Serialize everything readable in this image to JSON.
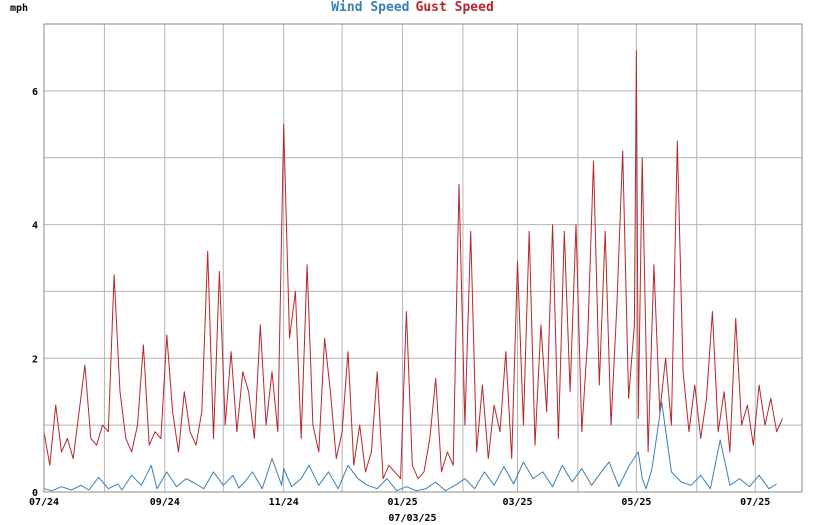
{
  "chart_data": {
    "type": "line",
    "title": "",
    "ylabel": "mph",
    "xlabel": "07/03/25",
    "ylim": [
      0,
      7
    ],
    "yticks": [
      0,
      2,
      4,
      6
    ],
    "xlim": [
      "2024-07-01",
      "2025-07-25"
    ],
    "x_tick_labels": [
      "07/24",
      "09/24",
      "11/24",
      "01/25",
      "03/25",
      "05/25",
      "07/25"
    ],
    "x_tick_dates": [
      "2024-07-01",
      "2024-09-01",
      "2024-11-01",
      "2025-01-01",
      "2025-03-01",
      "2025-05-01",
      "2025-07-01"
    ],
    "grid": true,
    "legend": "top-center",
    "series": [
      {
        "name": "Wind Speed",
        "color": "#3b7fb5",
        "x": [
          "2024-07-01",
          "2024-07-05",
          "2024-07-10",
          "2024-07-15",
          "2024-07-20",
          "2024-07-24",
          "2024-07-29",
          "2024-08-03",
          "2024-08-08",
          "2024-08-10",
          "2024-08-15",
          "2024-08-20",
          "2024-08-25",
          "2024-08-28",
          "2024-09-02",
          "2024-09-07",
          "2024-09-12",
          "2024-09-17",
          "2024-09-21",
          "2024-09-26",
          "2024-10-01",
          "2024-10-06",
          "2024-10-09",
          "2024-10-12",
          "2024-10-16",
          "2024-10-21",
          "2024-10-26",
          "2024-10-31",
          "2024-11-01",
          "2024-11-05",
          "2024-11-10",
          "2024-11-14",
          "2024-11-19",
          "2024-11-24",
          "2024-11-29",
          "2024-12-04",
          "2024-12-09",
          "2024-12-14",
          "2024-12-19",
          "2024-12-24",
          "2024-12-29",
          "2025-01-03",
          "2025-01-08",
          "2025-01-13",
          "2025-01-18",
          "2025-01-23",
          "2025-01-28",
          "2025-02-02",
          "2025-02-07",
          "2025-02-12",
          "2025-02-17",
          "2025-02-22",
          "2025-02-27",
          "2025-03-04",
          "2025-03-09",
          "2025-03-14",
          "2025-03-19",
          "2025-03-24",
          "2025-03-29",
          "2025-04-03",
          "2025-04-08",
          "2025-04-13",
          "2025-04-17",
          "2025-04-22",
          "2025-04-27",
          "2025-05-02",
          "2025-05-04",
          "2025-05-06",
          "2025-05-09",
          "2025-05-14",
          "2025-05-19",
          "2025-05-24",
          "2025-05-29",
          "2025-06-03",
          "2025-06-08",
          "2025-06-13",
          "2025-06-18",
          "2025-06-23",
          "2025-06-28",
          "2025-07-03",
          "2025-07-08",
          "2025-07-12"
        ],
        "values": [
          0.05,
          0.02,
          0.08,
          0.03,
          0.1,
          0.03,
          0.22,
          0.05,
          0.12,
          0.03,
          0.25,
          0.1,
          0.4,
          0.05,
          0.3,
          0.08,
          0.2,
          0.12,
          0.05,
          0.3,
          0.1,
          0.25,
          0.06,
          0.15,
          0.3,
          0.05,
          0.5,
          0.1,
          0.35,
          0.08,
          0.2,
          0.4,
          0.1,
          0.3,
          0.05,
          0.4,
          0.2,
          0.1,
          0.05,
          0.2,
          0.02,
          0.08,
          0.02,
          0.05,
          0.15,
          0.02,
          0.1,
          0.2,
          0.05,
          0.3,
          0.1,
          0.38,
          0.12,
          0.45,
          0.2,
          0.3,
          0.08,
          0.4,
          0.15,
          0.35,
          0.1,
          0.3,
          0.45,
          0.08,
          0.38,
          0.6,
          0.2,
          0.05,
          0.35,
          1.35,
          0.3,
          0.15,
          0.1,
          0.25,
          0.05,
          0.78,
          0.1,
          0.2,
          0.08,
          0.25,
          0.05,
          0.12
        ]
      },
      {
        "name": "Gust Speed",
        "color": "#b5282e",
        "x": [
          "2024-07-01",
          "2024-07-04",
          "2024-07-07",
          "2024-07-10",
          "2024-07-13",
          "2024-07-16",
          "2024-07-19",
          "2024-07-22",
          "2024-07-25",
          "2024-07-28",
          "2024-07-31",
          "2024-08-03",
          "2024-08-06",
          "2024-08-09",
          "2024-08-12",
          "2024-08-15",
          "2024-08-18",
          "2024-08-21",
          "2024-08-24",
          "2024-08-27",
          "2024-08-30",
          "2024-09-02",
          "2024-09-05",
          "2024-09-08",
          "2024-09-11",
          "2024-09-14",
          "2024-09-17",
          "2024-09-20",
          "2024-09-23",
          "2024-09-26",
          "2024-09-29",
          "2024-10-02",
          "2024-10-05",
          "2024-10-08",
          "2024-10-11",
          "2024-10-14",
          "2024-10-17",
          "2024-10-20",
          "2024-10-23",
          "2024-10-26",
          "2024-10-29",
          "2024-11-01",
          "2024-11-04",
          "2024-11-07",
          "2024-11-10",
          "2024-11-13",
          "2024-11-16",
          "2024-11-19",
          "2024-11-22",
          "2024-11-25",
          "2024-11-28",
          "2024-12-01",
          "2024-12-04",
          "2024-12-07",
          "2024-12-10",
          "2024-12-13",
          "2024-12-16",
          "2024-12-19",
          "2024-12-22",
          "2024-12-25",
          "2024-12-28",
          "2024-12-31",
          "2025-01-03",
          "2025-01-06",
          "2025-01-09",
          "2025-01-12",
          "2025-01-15",
          "2025-01-18",
          "2025-01-21",
          "2025-01-24",
          "2025-01-27",
          "2025-01-30",
          "2025-02-02",
          "2025-02-05",
          "2025-02-08",
          "2025-02-11",
          "2025-02-14",
          "2025-02-17",
          "2025-02-20",
          "2025-02-23",
          "2025-02-26",
          "2025-03-01",
          "2025-03-04",
          "2025-03-07",
          "2025-03-10",
          "2025-03-13",
          "2025-03-16",
          "2025-03-19",
          "2025-03-22",
          "2025-03-25",
          "2025-03-28",
          "2025-03-31",
          "2025-04-03",
          "2025-04-06",
          "2025-04-09",
          "2025-04-12",
          "2025-04-15",
          "2025-04-18",
          "2025-04-21",
          "2025-04-24",
          "2025-04-27",
          "2025-04-30",
          "2025-05-01",
          "2025-05-02",
          "2025-05-04",
          "2025-05-07",
          "2025-05-10",
          "2025-05-13",
          "2025-05-16",
          "2025-05-19",
          "2025-05-22",
          "2025-05-25",
          "2025-05-28",
          "2025-05-31",
          "2025-06-03",
          "2025-06-06",
          "2025-06-09",
          "2025-06-12",
          "2025-06-15",
          "2025-06-18",
          "2025-06-21",
          "2025-06-24",
          "2025-06-27",
          "2025-06-30",
          "2025-07-03",
          "2025-07-06",
          "2025-07-09",
          "2025-07-12",
          "2025-07-15"
        ],
        "values": [
          0.9,
          0.4,
          1.3,
          0.6,
          0.8,
          0.5,
          1.2,
          1.9,
          0.8,
          0.7,
          1.0,
          0.9,
          3.25,
          1.5,
          0.8,
          0.6,
          1.0,
          2.2,
          0.7,
          0.9,
          0.8,
          2.35,
          1.2,
          0.6,
          1.5,
          0.9,
          0.7,
          1.2,
          3.6,
          0.8,
          3.3,
          1.0,
          2.1,
          0.9,
          1.8,
          1.5,
          0.8,
          2.5,
          1.0,
          1.8,
          0.9,
          5.5,
          2.3,
          3.0,
          0.8,
          3.4,
          1.0,
          0.6,
          2.3,
          1.5,
          0.5,
          0.9,
          2.1,
          0.4,
          1.0,
          0.3,
          0.6,
          1.8,
          0.2,
          0.4,
          0.3,
          0.2,
          2.7,
          0.4,
          0.2,
          0.3,
          0.8,
          1.7,
          0.3,
          0.6,
          0.4,
          4.6,
          1.0,
          3.9,
          0.6,
          1.6,
          0.5,
          1.3,
          0.9,
          2.1,
          0.5,
          3.45,
          1.0,
          3.9,
          0.7,
          2.5,
          1.2,
          4.0,
          0.8,
          3.9,
          1.5,
          4.0,
          0.9,
          2.3,
          4.95,
          1.6,
          3.9,
          1.0,
          2.8,
          5.1,
          1.4,
          2.5,
          6.6,
          1.1,
          5.0,
          0.6,
          3.4,
          1.2,
          2.0,
          1.0,
          5.25,
          1.8,
          0.9,
          1.6,
          0.8,
          1.4,
          2.7,
          0.9,
          1.5,
          0.6,
          2.6,
          1.0,
          1.3,
          0.7,
          1.6,
          1.0,
          1.4,
          0.9,
          1.1
        ]
      }
    ]
  }
}
